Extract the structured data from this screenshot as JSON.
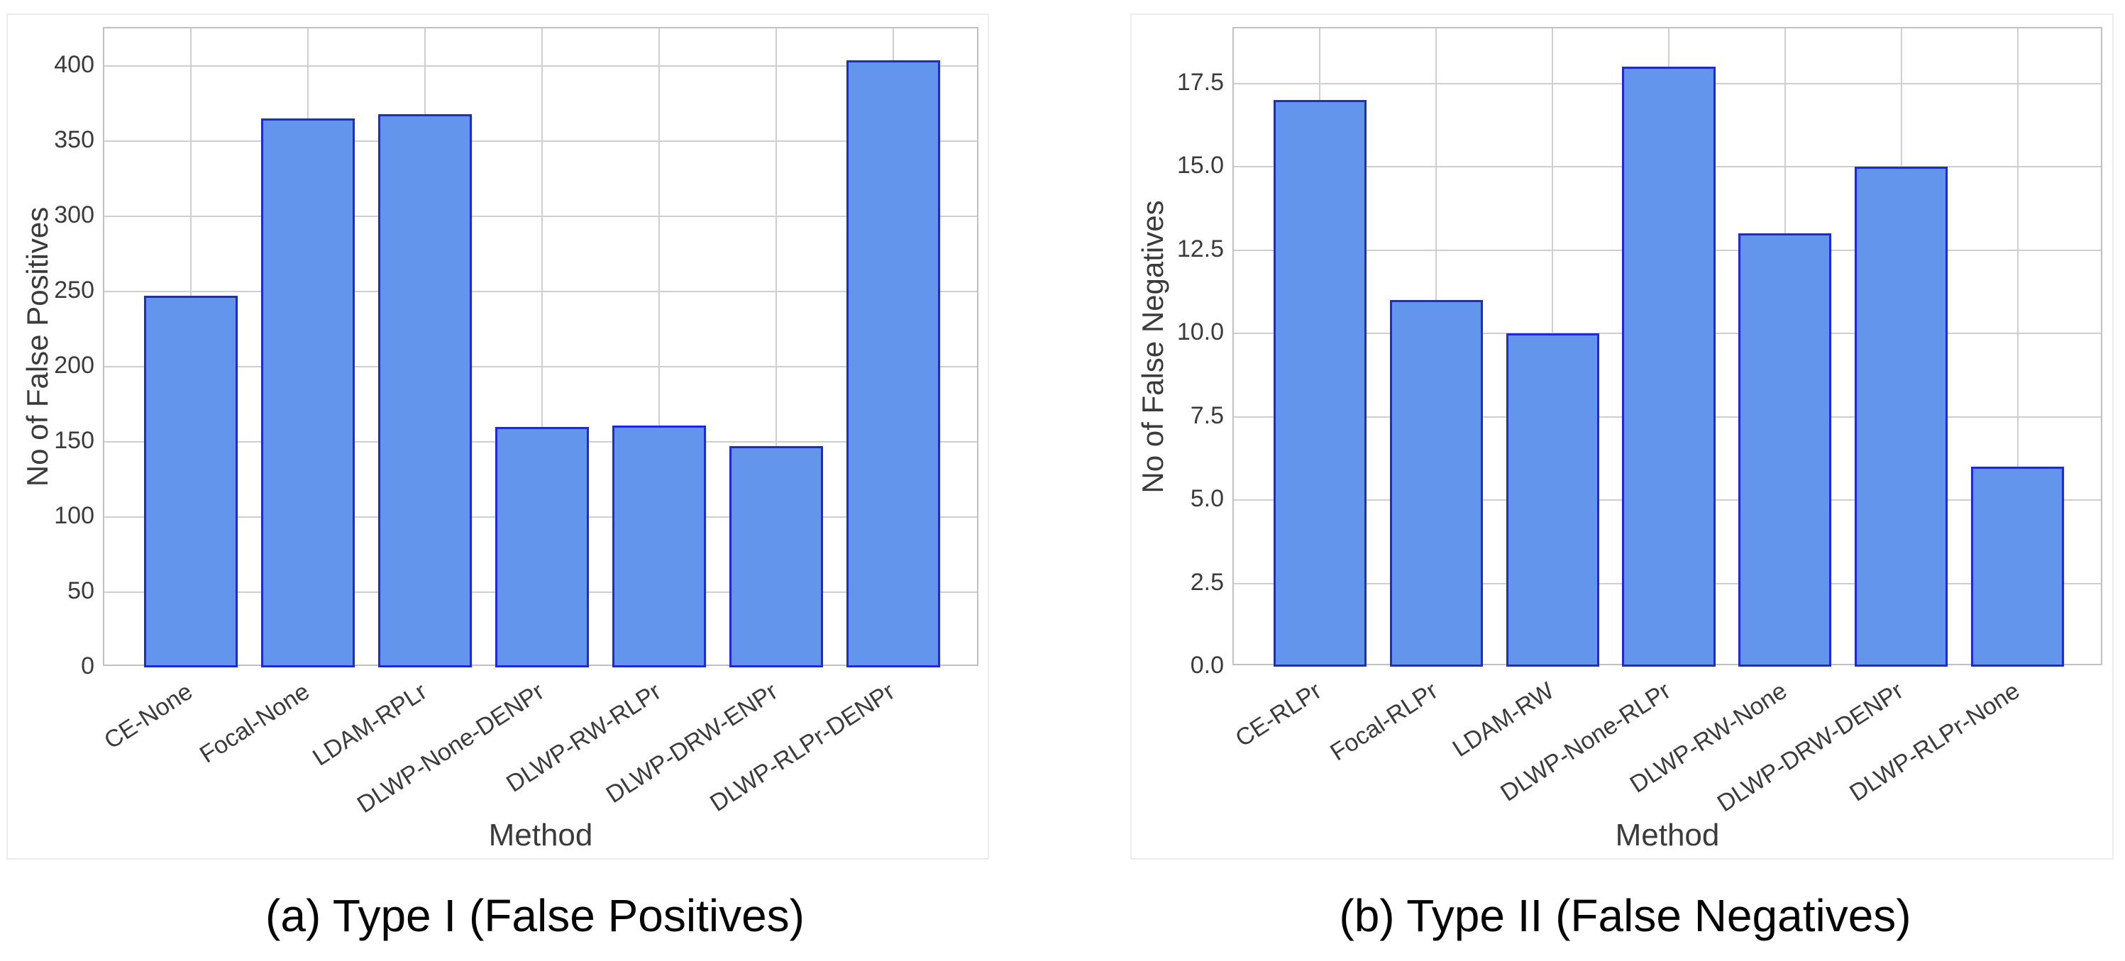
{
  "page": {
    "background": "#ffffff",
    "description": "Two side-by-side bar charts comparing methods"
  },
  "colors": {
    "bar_fill": "#6495ed",
    "bar_edge": "#1e2bd3",
    "gridline": "#cfcfcf",
    "spine": "#c0c0c0",
    "tick_text": "#3b3b3b",
    "caption_text": "#050505"
  },
  "chart_data": [
    {
      "type": "bar",
      "title": "",
      "categories": [
        "CE-None",
        "Focal-None",
        "LDAM-RPLr",
        "DLWP-None-DENPr",
        "DLWP-RW-RLPr",
        "DLWP-DRW-ENPr",
        "DLWP-RLPr-DENPr"
      ],
      "values": [
        247,
        365,
        368,
        160,
        161,
        147,
        404
      ],
      "xlabel": "Method",
      "ylabel": "No of False Positives",
      "ylim": [
        0,
        425
      ],
      "yticks": [
        {
          "value": 0,
          "label": "0"
        },
        {
          "value": 50,
          "label": "50"
        },
        {
          "value": 100,
          "label": "100"
        },
        {
          "value": 150,
          "label": "150"
        },
        {
          "value": 200,
          "label": "200"
        },
        {
          "value": 250,
          "label": "250"
        },
        {
          "value": 300,
          "label": "300"
        },
        {
          "value": 350,
          "label": "350"
        },
        {
          "value": 400,
          "label": "400"
        }
      ],
      "grid": true,
      "legend": null,
      "bar_color": "#6495ed",
      "bar_edge_color": "#1e2bd3",
      "caption": "(a) Type I (False Positives)"
    },
    {
      "type": "bar",
      "title": "",
      "categories": [
        "CE-RLPr",
        "Focal-RLPr",
        "LDAM-RW",
        "DLWP-None-RLPr",
        "DLWP-RW-None",
        "DLWP-DRW-DENPr",
        "DLWP-RLPr-None"
      ],
      "values": [
        17,
        11,
        10,
        18,
        13,
        15,
        6
      ],
      "xlabel": "Method",
      "ylabel": "No of False Negatives",
      "ylim": [
        0,
        19.15
      ],
      "yticks": [
        {
          "value": 0,
          "label": "0.0"
        },
        {
          "value": 2.5,
          "label": "2.5"
        },
        {
          "value": 5,
          "label": "5.0"
        },
        {
          "value": 7.5,
          "label": "7.5"
        },
        {
          "value": 10,
          "label": "10.0"
        },
        {
          "value": 12.5,
          "label": "12.5"
        },
        {
          "value": 15,
          "label": "15.0"
        },
        {
          "value": 17.5,
          "label": "17.5"
        }
      ],
      "grid": true,
      "legend": null,
      "bar_color": "#6495ed",
      "bar_edge_color": "#1e2bd3",
      "caption": "(b) Type II (False Negatives)"
    }
  ]
}
